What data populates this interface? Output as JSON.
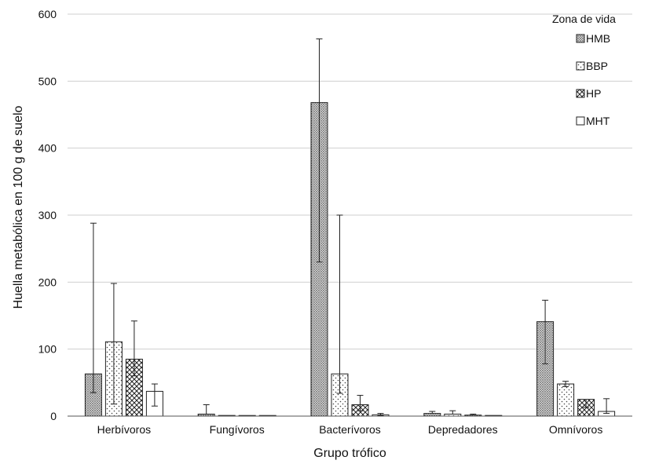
{
  "chart_data": {
    "type": "bar",
    "xlabel": "Grupo trófico",
    "ylabel": "Huella metabólica en 100 g de suelo",
    "ylim": [
      0,
      600
    ],
    "yticks": [
      0,
      100,
      200,
      300,
      400,
      500,
      600
    ],
    "grid": true,
    "legend_title": "Zona de vida",
    "legend_position": "top-right",
    "categories": [
      "Herbívoros",
      "Fungívoros",
      "Bacterívoros",
      "Depredadores",
      "Omnívoros"
    ],
    "series": [
      {
        "name": "HMB",
        "pattern": "dense-dots",
        "values": [
          63,
          3,
          468,
          4,
          141
        ],
        "err_high": [
          288,
          17,
          563,
          7,
          173
        ],
        "err_low": [
          35,
          null,
          230,
          null,
          78
        ]
      },
      {
        "name": "BBP",
        "pattern": "sparse-dots",
        "values": [
          111,
          1,
          63,
          3,
          48
        ],
        "err_high": [
          198,
          null,
          300,
          8,
          52
        ],
        "err_low": [
          18,
          null,
          34,
          null,
          44
        ]
      },
      {
        "name": "HP",
        "pattern": "crosshatch",
        "values": [
          85,
          0.5,
          17,
          1.5,
          25
        ],
        "err_high": [
          142,
          null,
          31,
          3,
          null
        ],
        "err_low": [
          60,
          null,
          8,
          null,
          13
        ]
      },
      {
        "name": "MHT",
        "pattern": "empty",
        "values": [
          37,
          0.5,
          2,
          1,
          7
        ],
        "err_high": [
          48,
          null,
          4,
          null,
          26
        ],
        "err_low": [
          15,
          null,
          1,
          null,
          4
        ]
      }
    ]
  }
}
